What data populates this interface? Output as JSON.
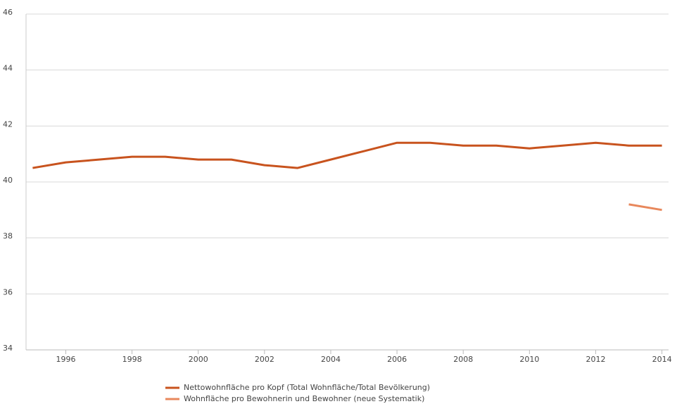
{
  "chart_data": {
    "type": "line",
    "x": [
      1995,
      1996,
      1997,
      1998,
      1999,
      2000,
      2001,
      2002,
      2003,
      2004,
      2005,
      2006,
      2007,
      2008,
      2009,
      2010,
      2011,
      2012,
      2013,
      2014
    ],
    "series": [
      {
        "name": "Nettowohnfläche pro Kopf (Total Wohnfläche/Total Bevölkerung)",
        "color": "#c8531e",
        "values": [
          40.5,
          40.7,
          40.8,
          40.9,
          40.9,
          40.8,
          40.8,
          40.6,
          40.5,
          40.8,
          41.1,
          41.4,
          41.4,
          41.3,
          41.3,
          41.2,
          41.3,
          41.4,
          41.3,
          41.3
        ]
      },
      {
        "name": "Wohnfläche pro Bewohnerin und Bewohner (neue Systematik)",
        "color": "#e8885c",
        "values": [
          null,
          null,
          null,
          null,
          null,
          null,
          null,
          null,
          null,
          null,
          null,
          null,
          null,
          null,
          null,
          null,
          null,
          null,
          39.2,
          39.0
        ]
      }
    ],
    "xlim": [
      1994.8,
      2014.2
    ],
    "xticks": [
      1996,
      1998,
      2000,
      2002,
      2004,
      2006,
      2008,
      2010,
      2012,
      2014
    ],
    "ylim": [
      34,
      46
    ],
    "yticks": [
      34,
      36,
      38,
      40,
      42,
      44,
      46
    ],
    "grid": true,
    "legend": "bottom"
  }
}
